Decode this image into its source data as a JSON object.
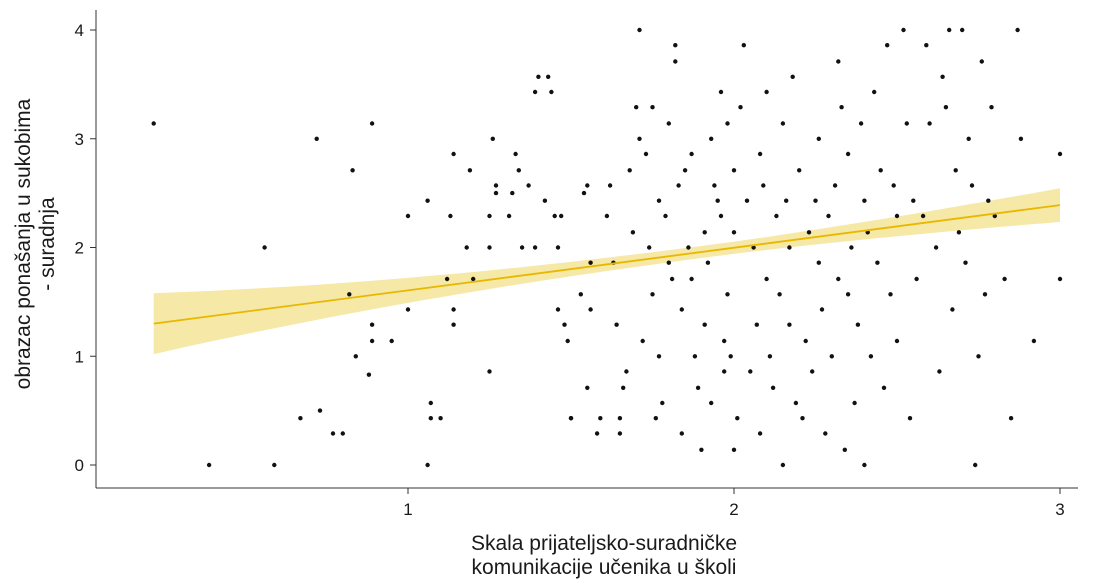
{
  "chart_data": {
    "type": "scatter",
    "xlabel_lines": [
      "Skala prijateljsko-suradničke",
      "komunikacije učenika u školi"
    ],
    "ylabel_lines": [
      "obrazac ponašanja u sukobima",
      "- suradnja"
    ],
    "xlim": [
      0.2,
      3.05
    ],
    "ylim": [
      -0.2,
      4.2
    ],
    "x_ticks": [
      1,
      2,
      3
    ],
    "y_ticks": [
      0,
      1,
      2,
      3,
      4
    ],
    "grid": false,
    "colors": {
      "points": "#111111",
      "trend_line": "#e8b800",
      "confidence_band": "#f3e08a",
      "axis": "#333333"
    },
    "trend": {
      "x_start": 0.22,
      "y_start": 1.3,
      "x_end": 3.0,
      "y_end": 2.39,
      "ci_half_width_start": 0.28,
      "ci_half_width_mid": 0.055,
      "ci_half_width_end": 0.155,
      "x_mid": 1.95
    },
    "points": [
      [
        0.22,
        3.14
      ],
      [
        0.39,
        0.0
      ],
      [
        0.56,
        2.0
      ],
      [
        0.59,
        0.0
      ],
      [
        0.67,
        0.43
      ],
      [
        0.72,
        3.0
      ],
      [
        0.73,
        0.5
      ],
      [
        0.77,
        0.29
      ],
      [
        0.8,
        0.29
      ],
      [
        0.82,
        1.57
      ],
      [
        0.83,
        2.71
      ],
      [
        0.84,
        1.0
      ],
      [
        0.88,
        0.83
      ],
      [
        0.89,
        1.14
      ],
      [
        0.89,
        1.29
      ],
      [
        0.89,
        3.14
      ],
      [
        0.95,
        1.14
      ],
      [
        1.0,
        2.29
      ],
      [
        1.0,
        1.43
      ],
      [
        1.06,
        0.0
      ],
      [
        1.06,
        2.43
      ],
      [
        1.07,
        0.43
      ],
      [
        1.07,
        0.57
      ],
      [
        1.1,
        0.43
      ],
      [
        1.12,
        1.71
      ],
      [
        1.13,
        2.29
      ],
      [
        1.14,
        1.29
      ],
      [
        1.14,
        1.43
      ],
      [
        1.14,
        2.86
      ],
      [
        1.18,
        2.0
      ],
      [
        1.19,
        2.71
      ],
      [
        1.2,
        1.71
      ],
      [
        1.25,
        2.0
      ],
      [
        1.25,
        0.86
      ],
      [
        1.25,
        2.29
      ],
      [
        1.26,
        3.0
      ],
      [
        1.27,
        2.5
      ],
      [
        1.27,
        2.57
      ],
      [
        1.31,
        2.29
      ],
      [
        1.32,
        2.5
      ],
      [
        1.33,
        2.86
      ],
      [
        1.34,
        2.71
      ],
      [
        1.35,
        2.0
      ],
      [
        1.37,
        2.57
      ],
      [
        1.39,
        3.43
      ],
      [
        1.39,
        2.0
      ],
      [
        1.4,
        3.57
      ],
      [
        1.42,
        2.43
      ],
      [
        1.43,
        3.57
      ],
      [
        1.44,
        3.43
      ],
      [
        1.45,
        2.29
      ],
      [
        1.46,
        2.0
      ],
      [
        1.46,
        1.43
      ],
      [
        1.47,
        2.29
      ],
      [
        1.48,
        1.29
      ],
      [
        1.49,
        1.14
      ],
      [
        1.5,
        0.43
      ],
      [
        1.5,
        0.43
      ],
      [
        1.53,
        1.57
      ],
      [
        1.54,
        2.5
      ],
      [
        1.55,
        2.57
      ],
      [
        1.55,
        0.71
      ],
      [
        1.56,
        1.86
      ],
      [
        1.56,
        1.43
      ],
      [
        1.58,
        0.29
      ],
      [
        1.59,
        0.43
      ],
      [
        1.61,
        2.29
      ],
      [
        1.62,
        2.57
      ],
      [
        1.63,
        1.86
      ],
      [
        1.64,
        1.29
      ],
      [
        1.65,
        0.29
      ],
      [
        1.65,
        0.43
      ],
      [
        1.66,
        0.71
      ],
      [
        1.67,
        0.86
      ],
      [
        1.68,
        2.71
      ],
      [
        1.69,
        2.14
      ],
      [
        1.7,
        3.29
      ],
      [
        1.71,
        3.0
      ],
      [
        1.71,
        4.0
      ],
      [
        1.72,
        1.14
      ],
      [
        1.73,
        2.86
      ],
      [
        1.74,
        2.0
      ],
      [
        1.75,
        3.29
      ],
      [
        1.75,
        1.57
      ],
      [
        1.76,
        0.43
      ],
      [
        1.77,
        2.43
      ],
      [
        1.77,
        1.0
      ],
      [
        1.78,
        0.57
      ],
      [
        1.79,
        2.29
      ],
      [
        1.8,
        3.14
      ],
      [
        1.8,
        1.86
      ],
      [
        1.81,
        1.71
      ],
      [
        1.82,
        3.71
      ],
      [
        1.82,
        3.86
      ],
      [
        1.83,
        2.57
      ],
      [
        1.84,
        0.29
      ],
      [
        1.84,
        1.43
      ],
      [
        1.85,
        2.71
      ],
      [
        1.86,
        2.0
      ],
      [
        1.87,
        2.86
      ],
      [
        1.87,
        1.71
      ],
      [
        1.88,
        1.0
      ],
      [
        1.89,
        0.71
      ],
      [
        1.9,
        0.14
      ],
      [
        1.91,
        1.29
      ],
      [
        1.91,
        2.14
      ],
      [
        1.92,
        1.86
      ],
      [
        1.93,
        3.0
      ],
      [
        1.93,
        0.57
      ],
      [
        1.94,
        2.57
      ],
      [
        1.95,
        2.43
      ],
      [
        1.96,
        3.43
      ],
      [
        1.96,
        2.29
      ],
      [
        1.97,
        1.14
      ],
      [
        1.97,
        0.86
      ],
      [
        1.98,
        3.14
      ],
      [
        1.98,
        1.57
      ],
      [
        1.99,
        1.0
      ],
      [
        2.0,
        2.14
      ],
      [
        2.0,
        2.71
      ],
      [
        2.0,
        0.14
      ],
      [
        2.01,
        0.43
      ],
      [
        2.02,
        3.29
      ],
      [
        2.03,
        3.86
      ],
      [
        2.04,
        2.43
      ],
      [
        2.05,
        0.86
      ],
      [
        2.06,
        2.0
      ],
      [
        2.07,
        1.29
      ],
      [
        2.08,
        2.86
      ],
      [
        2.08,
        0.29
      ],
      [
        2.09,
        2.57
      ],
      [
        2.1,
        3.43
      ],
      [
        2.1,
        1.71
      ],
      [
        2.11,
        1.0
      ],
      [
        2.12,
        0.71
      ],
      [
        2.13,
        2.29
      ],
      [
        2.14,
        1.57
      ],
      [
        2.15,
        3.14
      ],
      [
        2.15,
        0.0
      ],
      [
        2.16,
        2.43
      ],
      [
        2.17,
        1.29
      ],
      [
        2.17,
        2.0
      ],
      [
        2.18,
        3.57
      ],
      [
        2.19,
        0.57
      ],
      [
        2.2,
        2.71
      ],
      [
        2.21,
        0.43
      ],
      [
        2.22,
        1.14
      ],
      [
        2.23,
        2.14
      ],
      [
        2.24,
        0.86
      ],
      [
        2.25,
        2.43
      ],
      [
        2.26,
        3.0
      ],
      [
        2.26,
        1.86
      ],
      [
        2.27,
        1.43
      ],
      [
        2.28,
        0.29
      ],
      [
        2.29,
        2.29
      ],
      [
        2.3,
        1.0
      ],
      [
        2.31,
        2.57
      ],
      [
        2.32,
        1.71
      ],
      [
        2.32,
        3.71
      ],
      [
        2.33,
        3.29
      ],
      [
        2.34,
        0.14
      ],
      [
        2.35,
        2.86
      ],
      [
        2.35,
        1.57
      ],
      [
        2.36,
        2.0
      ],
      [
        2.37,
        0.57
      ],
      [
        2.38,
        1.29
      ],
      [
        2.39,
        3.14
      ],
      [
        2.4,
        0.0
      ],
      [
        2.4,
        2.43
      ],
      [
        2.41,
        2.14
      ],
      [
        2.42,
        1.0
      ],
      [
        2.43,
        3.43
      ],
      [
        2.44,
        1.86
      ],
      [
        2.45,
        2.71
      ],
      [
        2.46,
        0.71
      ],
      [
        2.47,
        3.86
      ],
      [
        2.48,
        1.57
      ],
      [
        2.49,
        2.57
      ],
      [
        2.5,
        1.14
      ],
      [
        2.5,
        2.29
      ],
      [
        2.52,
        4.0
      ],
      [
        2.53,
        3.14
      ],
      [
        2.54,
        0.43
      ],
      [
        2.55,
        2.43
      ],
      [
        2.56,
        1.71
      ],
      [
        2.58,
        2.29
      ],
      [
        2.59,
        3.86
      ],
      [
        2.6,
        3.14
      ],
      [
        2.62,
        2.0
      ],
      [
        2.63,
        0.86
      ],
      [
        2.64,
        3.57
      ],
      [
        2.65,
        3.29
      ],
      [
        2.66,
        4.0
      ],
      [
        2.67,
        1.43
      ],
      [
        2.68,
        2.71
      ],
      [
        2.69,
        2.14
      ],
      [
        2.7,
        4.0
      ],
      [
        2.71,
        1.86
      ],
      [
        2.72,
        3.0
      ],
      [
        2.73,
        2.57
      ],
      [
        2.74,
        0.0
      ],
      [
        2.75,
        1.0
      ],
      [
        2.76,
        3.71
      ],
      [
        2.77,
        1.57
      ],
      [
        2.78,
        2.43
      ],
      [
        2.79,
        3.29
      ],
      [
        2.8,
        2.29
      ],
      [
        2.83,
        1.71
      ],
      [
        2.85,
        0.43
      ],
      [
        2.87,
        4.0
      ],
      [
        2.88,
        3.0
      ],
      [
        2.92,
        1.14
      ],
      [
        3.0,
        2.86
      ],
      [
        3.0,
        1.71
      ]
    ]
  }
}
